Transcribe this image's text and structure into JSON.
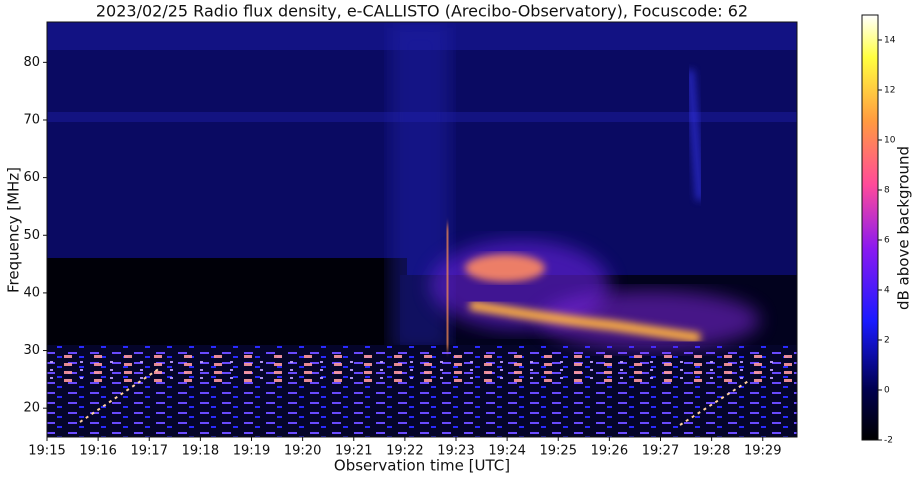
{
  "chart_data": {
    "type": "spectrogram",
    "title": "2023/02/25  Radio flux density, e-CALLISTO (Arecibo-Observatory), Focuscode: 62",
    "x_label": "Observation time [UTC]",
    "y_label": "Frequency [MHz]",
    "xlim": [
      0,
      14.67
    ],
    "xticks": [
      {
        "value": 0,
        "label": "19:15"
      },
      {
        "value": 1,
        "label": "19:16"
      },
      {
        "value": 2,
        "label": "19:17"
      },
      {
        "value": 3,
        "label": "19:18"
      },
      {
        "value": 4,
        "label": "19:19"
      },
      {
        "value": 5,
        "label": "19:20"
      },
      {
        "value": 6,
        "label": "19:21"
      },
      {
        "value": 7,
        "label": "19:22"
      },
      {
        "value": 8,
        "label": "19:23"
      },
      {
        "value": 9,
        "label": "19:24"
      },
      {
        "value": 10,
        "label": "19:25"
      },
      {
        "value": 11,
        "label": "19:26"
      },
      {
        "value": 12,
        "label": "19:27"
      },
      {
        "value": 13,
        "label": "19:28"
      },
      {
        "value": 14,
        "label": "19:29"
      }
    ],
    "ylim": [
      15,
      87
    ],
    "yticks": [
      20,
      30,
      40,
      50,
      60,
      70,
      80
    ],
    "colorbar": {
      "label": "dB above background",
      "lim": [
        -2,
        15
      ],
      "ticks": [
        -2,
        0,
        2,
        4,
        6,
        8,
        10,
        12,
        14
      ]
    }
  }
}
